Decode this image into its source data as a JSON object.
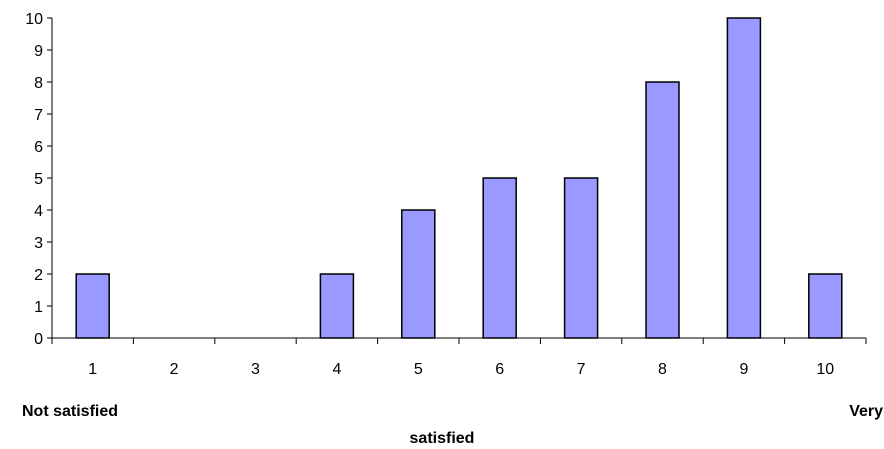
{
  "chart_data": {
    "type": "bar",
    "categories": [
      "1",
      "2",
      "3",
      "4",
      "5",
      "6",
      "7",
      "8",
      "9",
      "10"
    ],
    "values": [
      2,
      0,
      0,
      2,
      4,
      5,
      5,
      8,
      10,
      2
    ],
    "ylim": [
      0,
      10
    ],
    "yticks": [
      "0",
      "1",
      "2",
      "3",
      "4",
      "5",
      "6",
      "7",
      "8",
      "9",
      "10"
    ],
    "bar_color": "#9999ff",
    "grid": false,
    "title": "",
    "xlabel_left": "Not satisfied",
    "xlabel_right": "Very",
    "xlabel_center": "satisfied",
    "ylabel": ""
  }
}
